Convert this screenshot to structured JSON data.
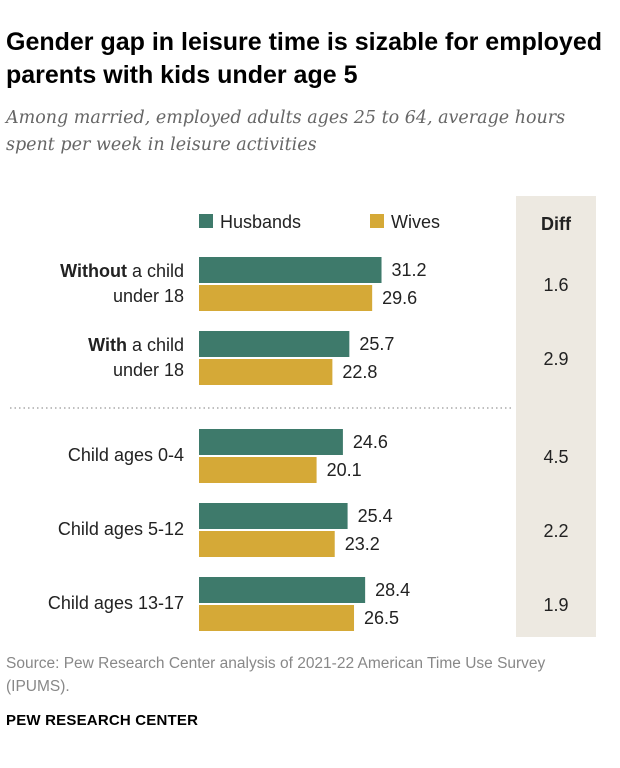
{
  "title": "Gender gap in leisure time is sizable for employed parents with kids under age 5",
  "subtitle": "Among married, employed adults ages 25 to 64, average hours spent per week in leisure activities",
  "source": "Source: Pew Research Center analysis of 2021-22 American Time Use Survey (IPUMS).",
  "organization": "PEW RESEARCH CENTER",
  "colors": {
    "husbands": "#3e7a6b",
    "wives": "#d5a937",
    "diff_column": "#ede9e1"
  },
  "chart_data": {
    "type": "bar",
    "orientation": "horizontal",
    "categories": [
      {
        "label_bold": "Without",
        "label_rest": " a child",
        "label_line2": "under 18"
      },
      {
        "label_bold": "With",
        "label_rest": " a child",
        "label_line2": "under 18"
      },
      {
        "label_bold": "",
        "label_rest": "Child ages 0-4",
        "label_line2": ""
      },
      {
        "label_bold": "",
        "label_rest": "Child ages 5-12",
        "label_line2": ""
      },
      {
        "label_bold": "",
        "label_rest": "Child ages 13-17",
        "label_line2": ""
      }
    ],
    "series": [
      {
        "name": "Husbands",
        "values": [
          31.2,
          25.7,
          24.6,
          25.4,
          28.4
        ]
      },
      {
        "name": "Wives",
        "values": [
          29.6,
          22.8,
          20.1,
          23.2,
          26.5
        ]
      }
    ],
    "diff_header": "Diff",
    "diff": [
      "1.6",
      "2.9",
      "4.5",
      "2.2",
      "1.9"
    ],
    "legend_position": "top",
    "xlim": [
      0,
      40
    ],
    "grid": false
  }
}
